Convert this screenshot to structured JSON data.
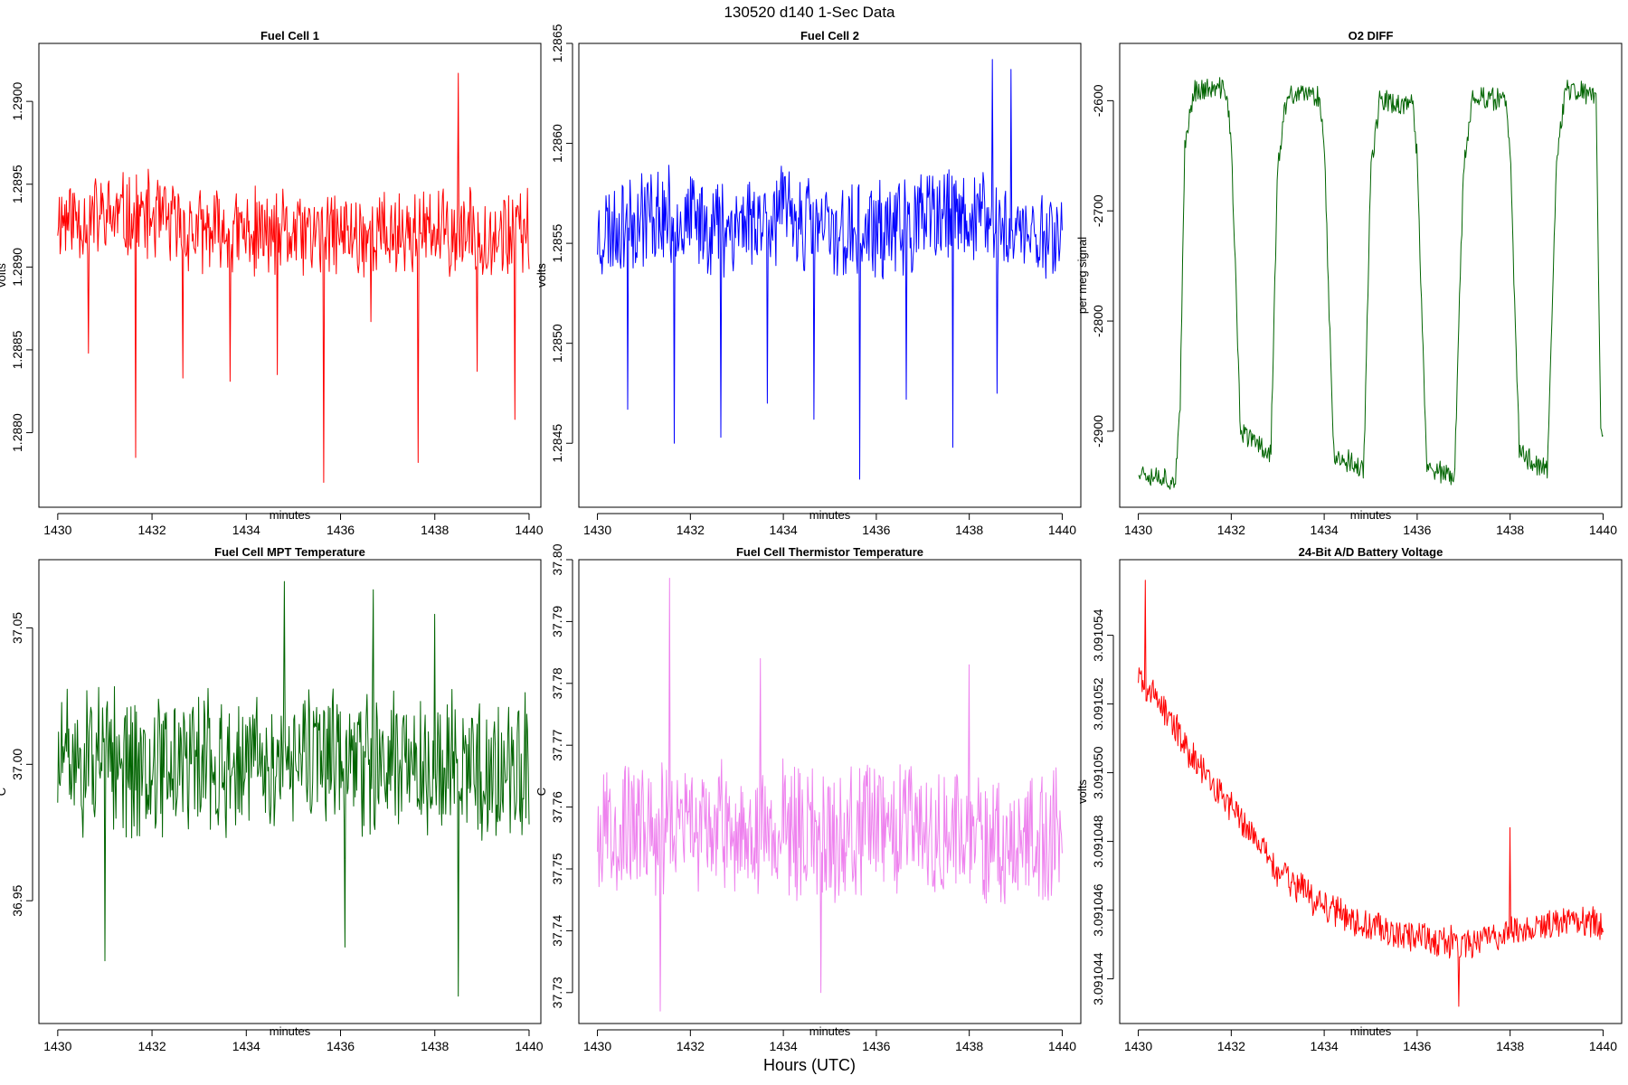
{
  "title": "130520   d140   1-Sec Data",
  "footer": "Hours (UTC)",
  "chart_data": [
    {
      "type": "line",
      "title": "Fuel Cell 1",
      "xlabel": "minutes",
      "ylabel": "volts",
      "color": "#ff0000",
      "xlim": [
        1429.6,
        1440.25
      ],
      "ylim": [
        1.28755,
        1.29035
      ],
      "xticks": [
        1430,
        1432,
        1434,
        1436,
        1438,
        1440
      ],
      "yticks": [
        1.288,
        1.2885,
        1.289,
        1.2895,
        1.29
      ],
      "ytick_labels": [
        "1.2880",
        "1.2885",
        "1.2890",
        "1.2895",
        "1.2900"
      ],
      "seed": 11,
      "base": [
        [
          1430,
          1.2893
        ],
        [
          1431,
          1.2893
        ],
        [
          1432,
          1.2893
        ],
        [
          1433,
          1.2892
        ],
        [
          1434,
          1.2892
        ],
        [
          1435,
          1.2892
        ],
        [
          1436,
          1.2892
        ],
        [
          1437,
          1.2892
        ],
        [
          1438,
          1.2892
        ],
        [
          1439,
          1.2892
        ],
        [
          1440,
          1.2892
        ]
      ],
      "noise": 0.0003,
      "spikes": [
        [
          1430.65,
          1.28848
        ],
        [
          1431.65,
          1.28785
        ],
        [
          1432.65,
          1.28833
        ],
        [
          1433.65,
          1.28831
        ],
        [
          1434.65,
          1.28835
        ],
        [
          1435.65,
          1.2877
        ],
        [
          1436.65,
          1.28867
        ],
        [
          1437.65,
          1.28782
        ],
        [
          1438.5,
          1.29017
        ],
        [
          1438.9,
          1.28837
        ],
        [
          1439.7,
          1.28808
        ]
      ],
      "series": [
        {
          "name": "Fuel Cell 1",
          "start": 1430.0,
          "end": 1440.0,
          "samples": 600,
          "min": 1.2877,
          "max": 1.2902
        }
      ]
    },
    {
      "type": "line",
      "title": "Fuel Cell 2",
      "xlabel": "minutes",
      "ylabel": "volts",
      "color": "#0000ff",
      "xlim": [
        1429.6,
        1440.4
      ],
      "ylim": [
        1.28418,
        1.2865
      ],
      "xticks": [
        1430,
        1432,
        1434,
        1436,
        1438,
        1440
      ],
      "yticks": [
        1.2845,
        1.285,
        1.2855,
        1.286,
        1.2865
      ],
      "ytick_labels": [
        "1.2845",
        "1.2850",
        "1.2855",
        "1.2860",
        "1.2865"
      ],
      "seed": 23,
      "base": [
        [
          1430,
          1.28555
        ],
        [
          1431,
          1.28565
        ],
        [
          1432,
          1.2856
        ],
        [
          1433,
          1.2856
        ],
        [
          1434,
          1.28565
        ],
        [
          1435,
          1.28555
        ],
        [
          1436,
          1.28555
        ],
        [
          1437,
          1.2856
        ],
        [
          1438,
          1.28565
        ],
        [
          1439,
          1.28555
        ],
        [
          1440,
          1.28555
        ]
      ],
      "noise": 0.00028,
      "spikes": [
        [
          1430.65,
          1.28467
        ],
        [
          1431.65,
          1.2845
        ],
        [
          1432.65,
          1.28453
        ],
        [
          1433.65,
          1.2847
        ],
        [
          1434.65,
          1.28462
        ],
        [
          1435.65,
          1.28432
        ],
        [
          1436.65,
          1.28472
        ],
        [
          1437.65,
          1.28448
        ],
        [
          1438.5,
          1.28642
        ],
        [
          1438.9,
          1.28637
        ],
        [
          1438.6,
          1.28475
        ]
      ],
      "series": [
        {
          "name": "Fuel Cell 2",
          "start": 1430.0,
          "end": 1440.0,
          "samples": 600,
          "min": 1.2843,
          "max": 1.2864
        }
      ]
    },
    {
      "type": "line",
      "title": "O2 DIFF",
      "xlabel": "minutes",
      "ylabel": "per meg signal",
      "color": "#006400",
      "xlim": [
        1429.6,
        1440.4
      ],
      "ylim": [
        -2969,
        -2548
      ],
      "xticks": [
        1430,
        1432,
        1434,
        1436,
        1438,
        1440
      ],
      "yticks": [
        -2900,
        -2800,
        -2700,
        -2600
      ],
      "ytick_labels": [
        "-2900",
        "-2800",
        "-2700",
        "-2600"
      ],
      "seed": 37,
      "base": [
        [
          1430.0,
          -2935
        ],
        [
          1430.8,
          -2945
        ],
        [
          1430.9,
          -2880
        ],
        [
          1431.0,
          -2640
        ],
        [
          1431.2,
          -2590
        ],
        [
          1431.9,
          -2590
        ],
        [
          1432.0,
          -2640
        ],
        [
          1432.2,
          -2900
        ],
        [
          1432.85,
          -2920
        ],
        [
          1433.0,
          -2660
        ],
        [
          1433.2,
          -2595
        ],
        [
          1433.9,
          -2595
        ],
        [
          1434.0,
          -2640
        ],
        [
          1434.2,
          -2920
        ],
        [
          1434.85,
          -2935
        ],
        [
          1435.0,
          -2660
        ],
        [
          1435.2,
          -2600
        ],
        [
          1435.9,
          -2605
        ],
        [
          1436.0,
          -2650
        ],
        [
          1436.2,
          -2930
        ],
        [
          1436.8,
          -2945
        ],
        [
          1437.0,
          -2660
        ],
        [
          1437.2,
          -2595
        ],
        [
          1437.9,
          -2600
        ],
        [
          1438.0,
          -2650
        ],
        [
          1438.2,
          -2920
        ],
        [
          1438.8,
          -2935
        ],
        [
          1439.0,
          -2650
        ],
        [
          1439.2,
          -2590
        ],
        [
          1439.85,
          -2595
        ],
        [
          1439.95,
          -2900
        ],
        [
          1440.0,
          -2910
        ]
      ],
      "noise": 12,
      "spikes": [],
      "series": [
        {
          "name": "O2 DIFF",
          "start": 1430.0,
          "end": 1440.0,
          "samples": 600,
          "min": -2958,
          "max": -2570
        }
      ]
    },
    {
      "type": "line",
      "title": "Fuel Cell MPT Temperature",
      "xlabel": "minutes",
      "ylabel": "C",
      "color": "#006400",
      "xlim": [
        1429.6,
        1440.25
      ],
      "ylim": [
        36.905,
        37.075
      ],
      "xticks": [
        1430,
        1432,
        1434,
        1436,
        1438,
        1440
      ],
      "yticks": [
        36.95,
        37.0,
        37.05
      ],
      "ytick_labels": [
        "36.95",
        "37.00",
        "37.05"
      ],
      "seed": 51,
      "base": [
        [
          1430,
          37.0
        ],
        [
          1440,
          37.0
        ]
      ],
      "noise": 0.03,
      "spikes": [
        [
          1434.8,
          37.067
        ],
        [
          1436.7,
          37.064
        ],
        [
          1438.5,
          36.915
        ],
        [
          1431.0,
          36.928
        ],
        [
          1436.1,
          36.933
        ],
        [
          1438.0,
          37.055
        ]
      ],
      "series": [
        {
          "name": "MPT Temperature",
          "start": 1430.0,
          "end": 1440.0,
          "samples": 600,
          "min": 36.915,
          "max": 37.068
        }
      ]
    },
    {
      "type": "line",
      "title": "Fuel Cell Thermistor Temperature",
      "xlabel": "minutes",
      "ylabel": "C",
      "color": "#ee82ee",
      "xlim": [
        1429.6,
        1440.4
      ],
      "ylim": [
        37.725,
        37.8
      ],
      "xticks": [
        1430,
        1432,
        1434,
        1436,
        1438,
        1440
      ],
      "yticks": [
        37.73,
        37.74,
        37.75,
        37.76,
        37.77,
        37.78,
        37.79,
        37.8
      ],
      "ytick_labels": [
        "37.73",
        "37.74",
        "37.75",
        "37.76",
        "37.77",
        "37.78",
        "37.79",
        "37.80"
      ],
      "seed": 67,
      "base": [
        [
          1430,
          37.757
        ],
        [
          1440,
          37.755
        ]
      ],
      "noise": 0.012,
      "spikes": [
        [
          1431.55,
          37.797
        ],
        [
          1431.35,
          37.727
        ],
        [
          1434.8,
          37.73
        ],
        [
          1433.5,
          37.784
        ],
        [
          1438.0,
          37.783
        ]
      ],
      "series": [
        {
          "name": "Thermistor Temperature",
          "start": 1430.0,
          "end": 1440.0,
          "samples": 600,
          "min": 37.727,
          "max": 37.797
        }
      ]
    },
    {
      "type": "line",
      "title": "24-Bit A/D Battery Voltage",
      "xlabel": "minutes",
      "ylabel": "volts",
      "color": "#ff0000",
      "xlim": [
        1429.6,
        1440.4
      ],
      "ylim": [
        3.0910427,
        3.0910562
      ],
      "xticks": [
        1430,
        1432,
        1434,
        1436,
        1438,
        1440
      ],
      "yticks": [
        3.091044,
        3.091046,
        3.091048,
        3.09105,
        3.091052,
        3.091054
      ],
      "ytick_labels": [
        "3.091044",
        "3.091046",
        "3.091048",
        "3.091050",
        "3.091052",
        "3.091054"
      ],
      "seed": 89,
      "base": [
        [
          1430.0,
          3.0910528
        ],
        [
          1430.5,
          3.091052
        ],
        [
          1431.0,
          3.0910508
        ],
        [
          1432.0,
          3.091049
        ],
        [
          1433.0,
          3.0910472
        ],
        [
          1434.0,
          3.0910461
        ],
        [
          1435.0,
          3.0910455
        ],
        [
          1436.0,
          3.0910452
        ],
        [
          1437.0,
          3.091045
        ],
        [
          1438.0,
          3.0910454
        ],
        [
          1439.0,
          3.0910456
        ],
        [
          1440.0,
          3.0910456
        ]
      ],
      "noise": 5.5e-07,
      "spikes": [
        [
          1430.15,
          3.0910556
        ],
        [
          1436.9,
          3.0910432
        ],
        [
          1438.0,
          3.0910484
        ]
      ],
      "series": [
        {
          "name": "Battery Voltage",
          "start": 1430.0,
          "end": 1440.0,
          "samples": 600,
          "min": 3.0910432,
          "max": 3.0910556
        }
      ]
    }
  ]
}
